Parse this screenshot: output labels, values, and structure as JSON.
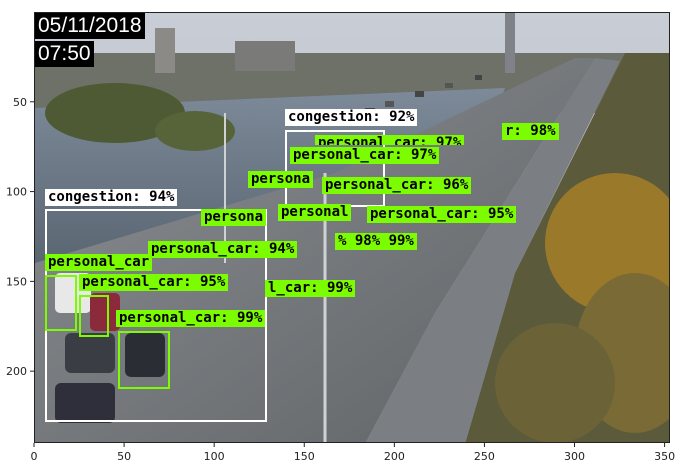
{
  "overlay": {
    "date": "05/11/2018",
    "time": "07:50"
  },
  "colors": {
    "congestion_box": "#ffffff",
    "vehicle_box": "#7cfc00",
    "label_bg_vehicle": "#7cfc00",
    "label_bg_congestion": "#ffffff"
  },
  "axes": {
    "x_ticks": [
      "0",
      "50",
      "100",
      "150",
      "200",
      "250",
      "300",
      "350"
    ],
    "y_ticks": [
      "50",
      "100",
      "150",
      "200"
    ]
  },
  "detections": [
    {
      "label": "congestion: 94%",
      "kind": "congestion"
    },
    {
      "label": "congestion: 92%",
      "kind": "congestion"
    },
    {
      "label": "personal_car: 97%",
      "kind": "vehicle"
    },
    {
      "label": "personal_car: 96%",
      "kind": "vehicle"
    },
    {
      "label": "personal_car: 95%",
      "kind": "vehicle"
    },
    {
      "label": "personal_car: 94%",
      "kind": "vehicle"
    },
    {
      "label": "personal_car: 95%",
      "kind": "vehicle"
    },
    {
      "label": "personal_car: 99%",
      "kind": "vehicle"
    },
    {
      "label": "l_car: 99%",
      "kind": "vehicle"
    },
    {
      "label": "r: 98%",
      "kind": "vehicle"
    },
    {
      "label": "personal_car: 97%",
      "kind": "vehicle"
    },
    {
      "label": "persona",
      "kind": "vehicle"
    },
    {
      "label": "persona",
      "kind": "vehicle"
    },
    {
      "label": "personal",
      "kind": "vehicle"
    },
    {
      "label": "% 98% 99%",
      "kind": "vehicle"
    },
    {
      "label": "personal_car",
      "kind": "vehicle"
    }
  ]
}
